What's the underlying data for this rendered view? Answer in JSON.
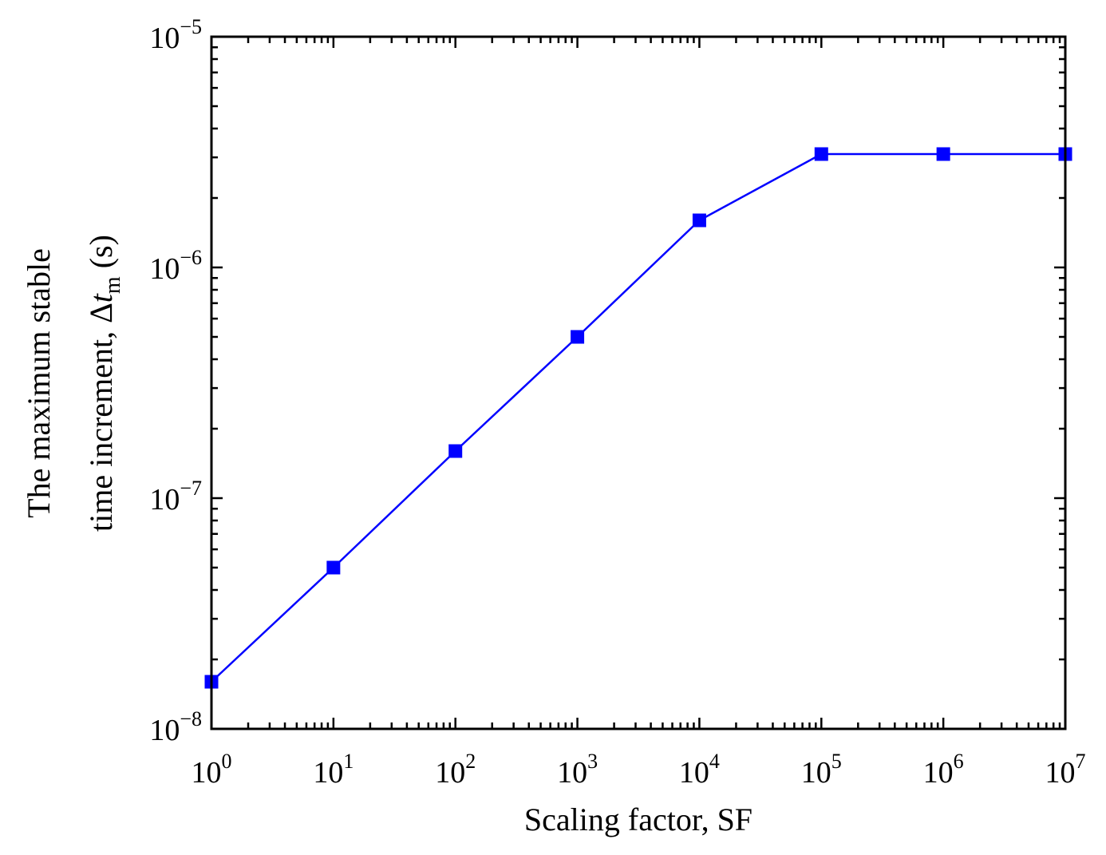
{
  "chart_data": {
    "type": "line",
    "title": "",
    "xlabel": "Scaling factor, SF",
    "ylabel": {
      "line1": "The maximum stable",
      "line2_prefix": "time increment, Δ",
      "line2_var": "t",
      "line2_sub": "m",
      "line2_suffix": " (s)"
    },
    "xscale": "log",
    "yscale": "log",
    "xlim": [
      1,
      10000000
    ],
    "ylim": [
      1e-08,
      1e-05
    ],
    "x_ticks": [
      {
        "base": "10",
        "exp": "0"
      },
      {
        "base": "10",
        "exp": "1"
      },
      {
        "base": "10",
        "exp": "2"
      },
      {
        "base": "10",
        "exp": "3"
      },
      {
        "base": "10",
        "exp": "4"
      },
      {
        "base": "10",
        "exp": "5"
      },
      {
        "base": "10",
        "exp": "6"
      },
      {
        "base": "10",
        "exp": "7"
      }
    ],
    "y_ticks": [
      {
        "base": "10",
        "exp": "−8"
      },
      {
        "base": "10",
        "exp": "−7"
      },
      {
        "base": "10",
        "exp": "−6"
      },
      {
        "base": "10",
        "exp": "−5"
      }
    ],
    "grid": false,
    "legend": "none",
    "series": [
      {
        "color": "#0000ff",
        "marker": "square",
        "x": [
          1,
          10,
          100,
          1000,
          10000,
          100000,
          1000000,
          10000000
        ],
        "y": [
          1.6e-08,
          5e-08,
          1.6e-07,
          5e-07,
          1.6e-06,
          3.1e-06,
          3.1e-06,
          3.1e-06
        ]
      }
    ]
  }
}
